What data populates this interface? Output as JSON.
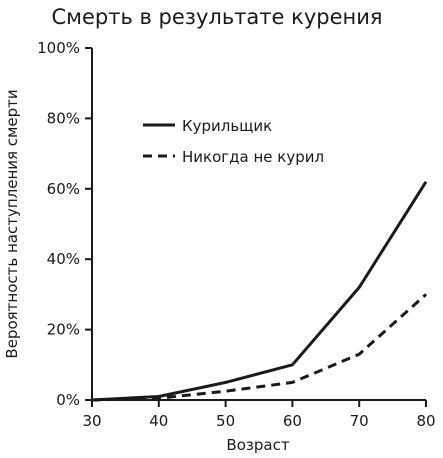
{
  "chart_data": {
    "type": "line",
    "title": "Смерть в результате курения",
    "xlabel": "Возраст",
    "ylabel": "Вероятность наступления смерти",
    "xlim": [
      30,
      80
    ],
    "ylim": [
      0,
      100
    ],
    "x_ticks": [
      "30",
      "40",
      "50",
      "60",
      "70",
      "80"
    ],
    "y_ticks": [
      "0%",
      "20%",
      "40%",
      "60%",
      "80%",
      "100%"
    ],
    "legend_position": "top-center",
    "series": [
      {
        "name": "Курильщик",
        "style": "solid",
        "x": [
          30,
          40,
          50,
          60,
          70,
          80
        ],
        "y": [
          0,
          1,
          5,
          10,
          32,
          62
        ]
      },
      {
        "name": "Никогда не курил",
        "style": "dashed",
        "x": [
          30,
          40,
          50,
          60,
          70,
          80
        ],
        "y": [
          0,
          0.5,
          2.5,
          5,
          13,
          30
        ]
      }
    ]
  }
}
